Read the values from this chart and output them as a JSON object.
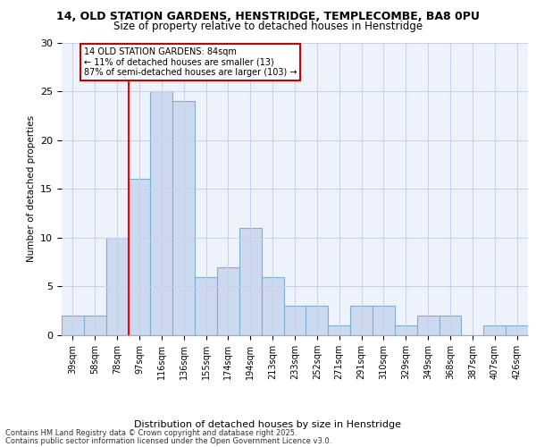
{
  "title_line1": "14, OLD STATION GARDENS, HENSTRIDGE, TEMPLECOMBE, BA8 0PU",
  "title_line2": "Size of property relative to detached houses in Henstridge",
  "xlabel": "Distribution of detached houses by size in Henstridge",
  "ylabel": "Number of detached properties",
  "categories": [
    "39sqm",
    "58sqm",
    "78sqm",
    "97sqm",
    "116sqm",
    "136sqm",
    "155sqm",
    "174sqm",
    "194sqm",
    "213sqm",
    "233sqm",
    "252sqm",
    "271sqm",
    "291sqm",
    "310sqm",
    "329sqm",
    "349sqm",
    "368sqm",
    "387sqm",
    "407sqm",
    "426sqm"
  ],
  "values": [
    2,
    2,
    10,
    16,
    25,
    24,
    6,
    7,
    11,
    6,
    3,
    3,
    1,
    3,
    3,
    1,
    2,
    2,
    0,
    1,
    1
  ],
  "bar_color": "#ccd9ef",
  "bar_edge_color": "#7bafd4",
  "red_line_x": 2.5,
  "annotation_text": "14 OLD STATION GARDENS: 84sqm\n← 11% of detached houses are smaller (13)\n87% of semi-detached houses are larger (103) →",
  "annotation_box_color": "#ffffff",
  "annotation_box_edge": "#cc0000",
  "ylim": [
    0,
    30
  ],
  "yticks": [
    0,
    5,
    10,
    15,
    20,
    25,
    30
  ],
  "footer_line1": "Contains HM Land Registry data © Crown copyright and database right 2025.",
  "footer_line2": "Contains public sector information licensed under the Open Government Licence v3.0.",
  "bg_color": "#eef2fa",
  "grid_color": "#c8d0e8"
}
